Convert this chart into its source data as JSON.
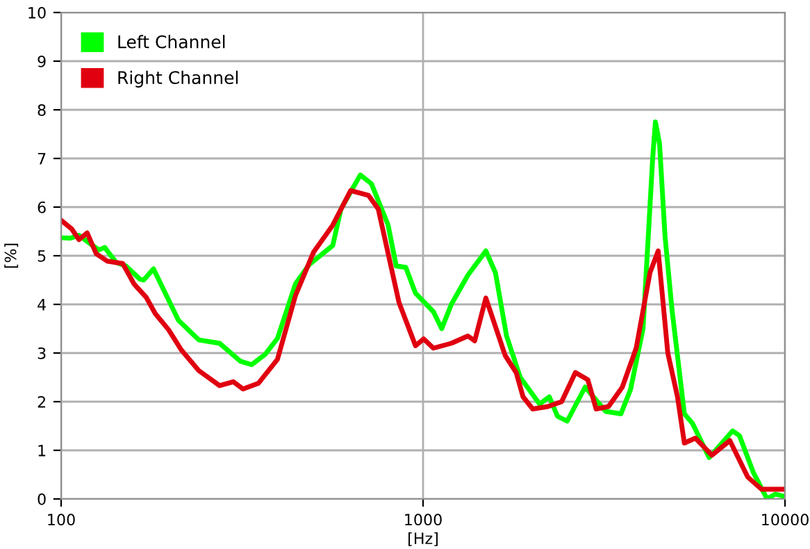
{
  "chart_data": {
    "type": "line",
    "xlabel": "[Hz]",
    "ylabel": "[%]",
    "log": "x",
    "xlim": [
      100,
      10000
    ],
    "xticks": [
      100,
      1000,
      10000
    ],
    "ylim": [
      0,
      10
    ],
    "yticks": [
      0,
      1,
      2,
      3,
      4,
      5,
      6,
      7,
      8,
      9,
      10
    ],
    "grid": true,
    "legend": "top left",
    "line_style": "solid",
    "marker": "none",
    "series": [
      {
        "name": "Left Channel",
        "color": "#00ff00",
        "x": [
          100,
          106,
          112,
          127,
          132,
          142,
          151,
          165,
          169,
          180,
          211,
          240,
          274,
          313,
          336,
          366,
          396,
          444,
          485,
          563,
          593,
          671,
          720,
          800,
          843,
          896,
          953,
          1068,
          1126,
          1197,
          1330,
          1491,
          1585,
          1701,
          1856,
          2099,
          2232,
          2352,
          2501,
          2804,
          3197,
          3522,
          3743,
          4053,
          4198,
          4309,
          4385,
          4502,
          4662,
          4872,
          5272,
          5556,
          6173,
          7166,
          7487,
          8172,
          8922,
          9404,
          10000
        ],
        "values": [
          5.37,
          5.36,
          5.42,
          5.12,
          5.17,
          4.86,
          4.79,
          4.52,
          4.5,
          4.73,
          3.67,
          3.27,
          3.2,
          2.83,
          2.76,
          2.97,
          3.3,
          4.42,
          4.82,
          5.21,
          5.96,
          6.66,
          6.48,
          5.64,
          4.79,
          4.76,
          4.23,
          3.85,
          3.5,
          4.0,
          4.6,
          5.1,
          4.65,
          3.35,
          2.5,
          1.95,
          2.1,
          1.7,
          1.6,
          2.3,
          1.8,
          1.75,
          2.25,
          3.5,
          5.5,
          7.0,
          7.75,
          7.3,
          5.4,
          3.9,
          1.75,
          1.55,
          0.85,
          1.4,
          1.3,
          0.55,
          0.0,
          0.1,
          0.05
        ]
      },
      {
        "name": "Right Channel",
        "color": "#e00010",
        "x": [
          100,
          107,
          112,
          118,
          125,
          134,
          148,
          159,
          172,
          182,
          198,
          215,
          240,
          274,
          299,
          318,
          351,
          396,
          444,
          498,
          563,
          631,
          707,
          752,
          858,
          953,
          1004,
          1068,
          1197,
          1330,
          1389,
          1491,
          1686,
          1808,
          1889,
          2009,
          2212,
          2415,
          2636,
          2853,
          3007,
          3254,
          3553,
          3880,
          4235,
          4463,
          4745,
          5046,
          5272,
          5655,
          6282,
          7041,
          7890,
          8613,
          9826
        ],
        "values": [
          5.73,
          5.55,
          5.33,
          5.47,
          5.04,
          4.89,
          4.84,
          4.42,
          4.14,
          3.81,
          3.48,
          3.06,
          2.64,
          2.33,
          2.41,
          2.26,
          2.38,
          2.87,
          4.18,
          5.07,
          5.63,
          6.34,
          6.24,
          5.96,
          4.04,
          3.15,
          3.29,
          3.1,
          3.2,
          3.35,
          3.25,
          4.13,
          2.95,
          2.6,
          2.1,
          1.85,
          1.9,
          2.0,
          2.6,
          2.45,
          1.85,
          1.9,
          2.3,
          3.1,
          4.65,
          5.1,
          3.0,
          2.1,
          1.15,
          1.25,
          0.9,
          1.2,
          0.45,
          0.2,
          0.2
        ]
      }
    ]
  }
}
